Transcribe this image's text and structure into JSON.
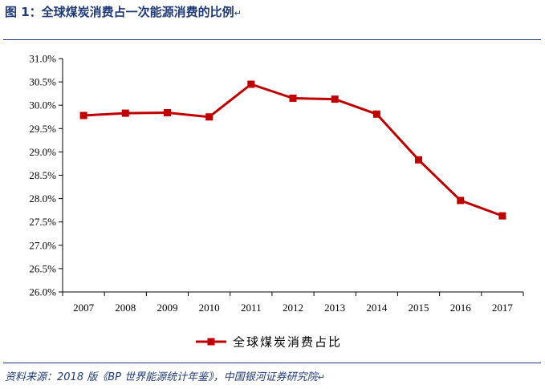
{
  "header": {
    "title": "图 1：全球煤炭消费占一次能源消费的比例",
    "return_mark": "↵"
  },
  "footer": {
    "source": "资料来源：2018 版《BP 世界能源统计年鉴》，中国银河证券研究院",
    "return_mark": "↵"
  },
  "colors": {
    "series": "#c00000",
    "rule": "#1f3a78"
  },
  "chart_data": {
    "type": "line",
    "title": "",
    "xlabel": "",
    "ylabel": "",
    "x": [
      "2007",
      "2008",
      "2009",
      "2010",
      "2011",
      "2012",
      "2013",
      "2014",
      "2015",
      "2016",
      "2017"
    ],
    "series": [
      {
        "name": "全球煤炭消费占比",
        "values": [
          29.78,
          29.83,
          29.84,
          29.75,
          30.45,
          30.15,
          30.13,
          29.81,
          28.83,
          27.96,
          27.63
        ],
        "marker": "square"
      }
    ],
    "ylim": [
      26.0,
      31.0
    ],
    "ytick_step": 0.5,
    "ytick_labels": [
      "26.0%",
      "26.5%",
      "27.0%",
      "27.5%",
      "28.0%",
      "28.5%",
      "29.0%",
      "29.5%",
      "30.0%",
      "30.5%",
      "31.0%"
    ],
    "grid": false,
    "legend": "bottom-center"
  }
}
